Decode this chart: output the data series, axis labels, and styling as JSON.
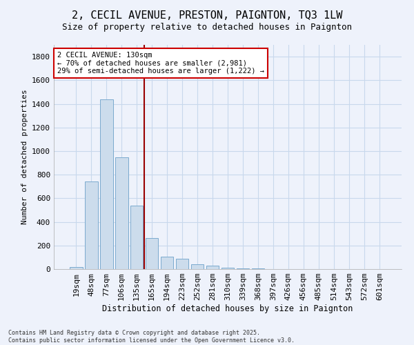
{
  "title": "2, CECIL AVENUE, PRESTON, PAIGNTON, TQ3 1LW",
  "subtitle": "Size of property relative to detached houses in Paignton",
  "xlabel": "Distribution of detached houses by size in Paignton",
  "ylabel": "Number of detached properties",
  "categories": [
    "19sqm",
    "48sqm",
    "77sqm",
    "106sqm",
    "135sqm",
    "165sqm",
    "194sqm",
    "223sqm",
    "252sqm",
    "281sqm",
    "310sqm",
    "339sqm",
    "368sqm",
    "397sqm",
    "426sqm",
    "456sqm",
    "485sqm",
    "514sqm",
    "543sqm",
    "572sqm",
    "601sqm"
  ],
  "values": [
    20,
    745,
    1440,
    945,
    535,
    265,
    105,
    85,
    40,
    30,
    10,
    5,
    3,
    2,
    2,
    2,
    2,
    2,
    2,
    2,
    2
  ],
  "bar_color": "#ccdcec",
  "bar_edge_color": "#7aaace",
  "property_line_x": 4.5,
  "annotation_text": "2 CECIL AVENUE: 130sqm\n← 70% of detached houses are smaller (2,981)\n29% of semi-detached houses are larger (1,222) →",
  "annotation_box_color": "#ffffff",
  "annotation_box_edge": "#cc0000",
  "vline_color": "#990000",
  "ylim": [
    0,
    1900
  ],
  "yticks": [
    0,
    200,
    400,
    600,
    800,
    1000,
    1200,
    1400,
    1600,
    1800
  ],
  "grid_color": "#c8d8ec",
  "background_color": "#eef2fb",
  "plot_bg_color": "#eef2fb",
  "footer": "Contains HM Land Registry data © Crown copyright and database right 2025.\nContains public sector information licensed under the Open Government Licence v3.0.",
  "title_fontsize": 11,
  "subtitle_fontsize": 9,
  "ylabel_fontsize": 8,
  "xlabel_fontsize": 8.5,
  "tick_fontsize": 8,
  "annot_fontsize": 7.5,
  "footer_fontsize": 6
}
